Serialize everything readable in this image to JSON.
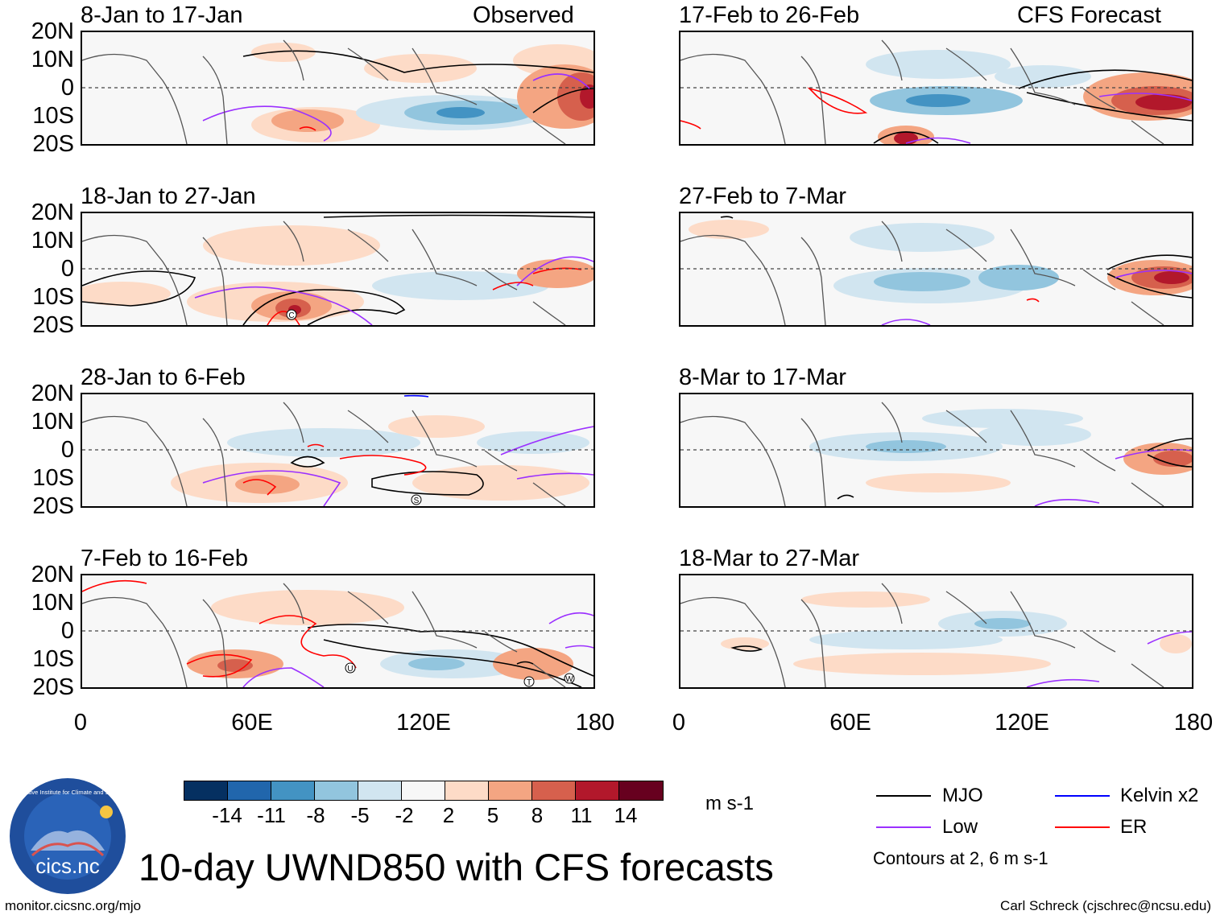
{
  "header": {
    "left_label": "Observed",
    "right_label": "CFS Forecast"
  },
  "observed_panels": [
    {
      "date_range": "8-Jan to 17-Jan"
    },
    {
      "date_range": "18-Jan to 27-Jan"
    },
    {
      "date_range": "28-Jan to 6-Feb"
    },
    {
      "date_range": "7-Feb to 16-Feb"
    }
  ],
  "forecast_panels": [
    {
      "date_range": "17-Feb to 26-Feb"
    },
    {
      "date_range": "27-Feb to 7-Mar"
    },
    {
      "date_range": "8-Mar to 17-Mar"
    },
    {
      "date_range": "18-Mar to 27-Mar"
    }
  ],
  "y_axis_labels": [
    "20N",
    "10N",
    "0",
    "10S",
    "20S"
  ],
  "x_axis_labels": [
    "0",
    "60E",
    "120E",
    "180"
  ],
  "storm_markers": {
    "panel2": [
      "C"
    ],
    "panel3": [
      "S"
    ],
    "panel4": [
      "U",
      "T",
      "W"
    ]
  },
  "colorbar": {
    "levels": [
      "-14",
      "-11",
      "-8",
      "-5",
      "-2",
      "2",
      "5",
      "8",
      "11",
      "14"
    ],
    "colors": [
      "#053061",
      "#2166ac",
      "#4393c3",
      "#92c5de",
      "#d1e5f0",
      "#f7f7f7",
      "#fddbc7",
      "#f4a582",
      "#d6604d",
      "#b2182b",
      "#67001f"
    ],
    "units": "m s-1"
  },
  "legend": {
    "mjo": "MJO",
    "low": "Low",
    "kelvin": "Kelvin x2",
    "er": "ER",
    "contours_note": "Contours at 2, 6 m s-1",
    "colors": {
      "mjo": "#000000",
      "low": "#9b30ff",
      "kelvin": "#0000ff",
      "er": "#ff0000"
    }
  },
  "title": "10-day UWND850 with CFS forecasts",
  "logo_text": "cics.nc",
  "logo_ring_text": "Cooperative Institute for Climate and Satellites",
  "footer": {
    "url": "monitor.cicsnc.org/mjo",
    "credit": "Carl Schreck (cjschrec@ncsu.edu)"
  }
}
